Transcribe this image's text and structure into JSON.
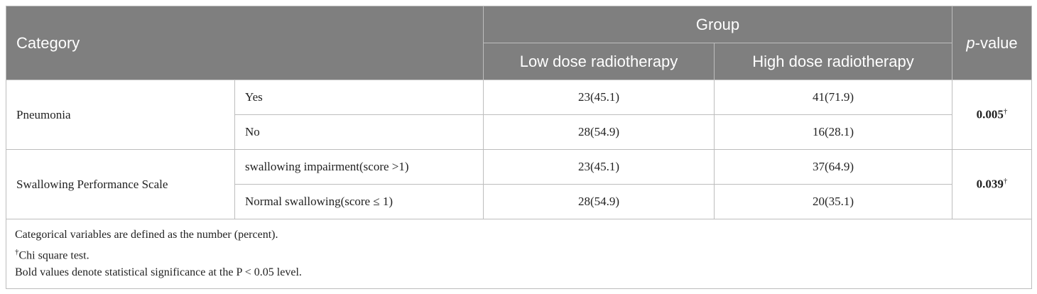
{
  "header": {
    "category": "Category",
    "group": "Group",
    "low_dose": "Low dose radiotherapy",
    "high_dose": "High dose radiotherapy",
    "p_value": [
      "p",
      "-value"
    ]
  },
  "rows": [
    {
      "category": "Pneumonia",
      "items": [
        {
          "label": "Yes",
          "low": "23(45.1)",
          "high": "41(71.9)"
        },
        {
          "label": "No",
          "low": "28(54.9)",
          "high": "16(28.1)"
        }
      ],
      "p_value": "0.005",
      "p_mark": "†"
    },
    {
      "category": "Swallowing Performance Scale",
      "items": [
        {
          "label": "swallowing impairment(score >1)",
          "low": "23(45.1)",
          "high": "37(64.9)"
        },
        {
          "label": "Normal swallowing(score ≤ 1)",
          "low": "28(54.9)",
          "high": "20(35.1)"
        }
      ],
      "p_value": "0.039",
      "p_mark": "†"
    }
  ],
  "footnotes": [
    {
      "text": "Categorical variables are defined as the number (percent)."
    },
    {
      "mark": "†",
      "text": "Chi square test."
    },
    {
      "text": "Bold values denote statistical significance at the P < 0.05 level."
    }
  ]
}
